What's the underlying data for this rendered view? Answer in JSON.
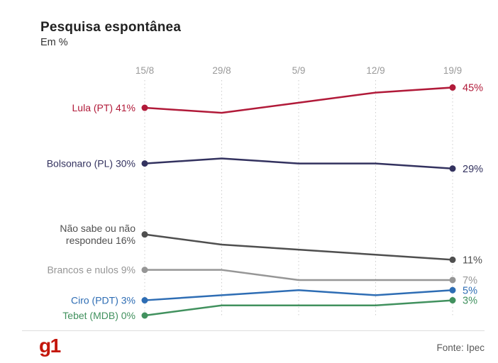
{
  "header": {
    "title": "Pesquisa espontânea",
    "subtitle": "Em %"
  },
  "footer": {
    "logo": "g1",
    "logo_color": "#c4170c",
    "source": "Fonte: Ipec"
  },
  "chart_data": {
    "type": "line",
    "title": "Pesquisa espontânea",
    "ylabel": "Em %",
    "x": [
      "15/8",
      "29/8",
      "5/9",
      "12/9",
      "19/9"
    ],
    "ylim": [
      0,
      47
    ],
    "grid": "vertical-dashed",
    "legend_position": "inline-start-end-labels",
    "series": [
      {
        "name": "Lula (PT)",
        "color": "#b11a39",
        "values": [
          41,
          40,
          42,
          44,
          45
        ],
        "start_label": [
          "Lula (PT) 41%"
        ],
        "end_label": "45%"
      },
      {
        "name": "Bolsonaro (PL)",
        "color": "#33325f",
        "values": [
          30,
          31,
          30,
          30,
          29
        ],
        "start_label": [
          "Bolsonaro (PL) 30%"
        ],
        "end_label": "29%"
      },
      {
        "name": "Não sabe ou não respondeu",
        "color": "#4f4f4f",
        "values": [
          16,
          14,
          13,
          12,
          11
        ],
        "start_label": [
          "Não sabe ou não",
          "respondeu 16%"
        ],
        "end_label": "11%"
      },
      {
        "name": "Brancos e nulos",
        "color": "#969696",
        "values": [
          9,
          9,
          7,
          7,
          7
        ],
        "start_label": [
          "Brancos e nulos 9%"
        ],
        "end_label": "7%"
      },
      {
        "name": "Ciro (PDT)",
        "color": "#2e6db4",
        "values": [
          3,
          4,
          5,
          4,
          5
        ],
        "start_label": [
          "Ciro (PDT) 3%"
        ],
        "end_label": "5%"
      },
      {
        "name": "Tebet (MDB)",
        "color": "#41915e",
        "values": [
          0,
          2,
          2,
          2,
          3
        ],
        "start_label": [
          "Tebet (MDB) 0%"
        ],
        "end_label": "3%"
      }
    ]
  }
}
